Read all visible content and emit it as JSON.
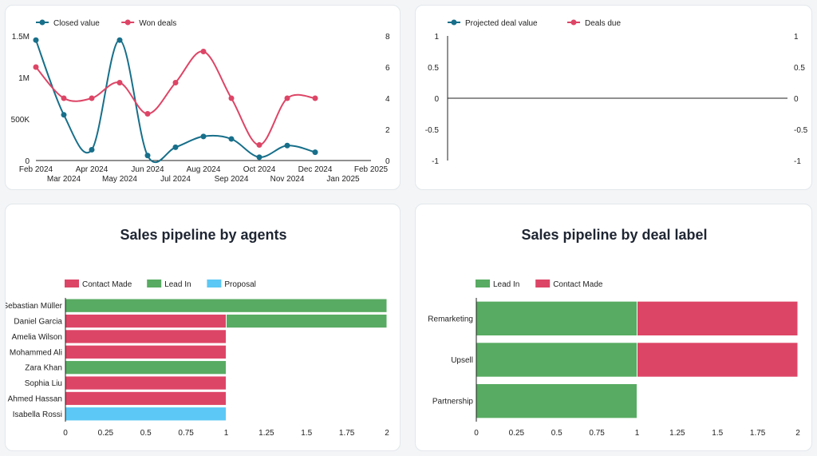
{
  "colors": {
    "teal": "#176f8a",
    "pink": "#dd4566",
    "green": "#58ab62",
    "red": "#dd4566",
    "sky": "#5cc8f5"
  },
  "chart_data": [
    {
      "type": "line",
      "legend": [
        "Closed value",
        "Won deals"
      ],
      "x_labels_top": [
        "Feb 2024",
        "Apr 2024",
        "Jun 2024",
        "Aug 2024",
        "Oct 2024",
        "Dec 2024",
        "Feb 2025"
      ],
      "x_labels_bottom": [
        "Mar 2024",
        "May 2024",
        "Jul 2024",
        "Sep 2024",
        "Nov 2024",
        "Jan 2025"
      ],
      "y_left_ticks": [
        "0",
        "500K",
        "1M",
        "1.5M"
      ],
      "y_right_ticks": [
        "0",
        "2",
        "4",
        "6",
        "8"
      ],
      "ylim_left": [
        0,
        1500000
      ],
      "ylim_right": [
        0,
        8
      ],
      "months": [
        0,
        1,
        2,
        3,
        4,
        5,
        6,
        7,
        8,
        9,
        10,
        11,
        12
      ],
      "series": [
        {
          "name": "Closed value",
          "axis": "left",
          "x": [
            0,
            1,
            2,
            3,
            4,
            5,
            6,
            7,
            8,
            9,
            10
          ],
          "values": [
            1450000,
            550000,
            130000,
            1450000,
            60000,
            160000,
            290000,
            260000,
            40000,
            180000,
            100000
          ]
        },
        {
          "name": "Won deals",
          "axis": "right",
          "x": [
            0,
            1,
            2,
            3,
            4,
            5,
            6,
            7,
            8,
            9,
            10
          ],
          "values": [
            6,
            4,
            4,
            5,
            3,
            5,
            7,
            4,
            1,
            4,
            4
          ]
        }
      ]
    },
    {
      "type": "line",
      "legend": [
        "Projected deal value",
        "Deals due"
      ],
      "y_left_ticks": [
        "-1",
        "-0.5",
        "0",
        "0.5",
        "1"
      ],
      "y_right_ticks": [
        "-1",
        "-0.5",
        "0",
        "0.5",
        "1"
      ],
      "ylim_left": [
        -1,
        1
      ],
      "ylim_right": [
        -1,
        1
      ],
      "series": []
    },
    {
      "type": "bar",
      "orientation": "horizontal",
      "stacked": true,
      "title": "Sales pipeline by agents",
      "legend": [
        "Contact Made",
        "Lead In",
        "Proposal"
      ],
      "categories": [
        "Sebastian Müller",
        "Daniel Garcia",
        "Amelia Wilson",
        "Mohammed Ali",
        "Zara Khan",
        "Sophia Liu",
        "Ahmed Hassan",
        "Isabella Rossi"
      ],
      "x_ticks": [
        "0",
        "0.25",
        "0.5",
        "0.75",
        "1",
        "1.25",
        "1.5",
        "1.75",
        "2"
      ],
      "xlim": [
        0,
        2
      ],
      "series": [
        {
          "name": "Contact Made",
          "values": [
            0,
            1,
            1,
            1,
            0,
            1,
            1,
            0
          ]
        },
        {
          "name": "Lead In",
          "values": [
            2,
            1,
            0,
            0,
            1,
            0,
            0,
            0
          ]
        },
        {
          "name": "Proposal",
          "values": [
            0,
            0,
            0,
            0,
            0,
            0,
            0,
            1
          ]
        }
      ]
    },
    {
      "type": "bar",
      "orientation": "horizontal",
      "stacked": true,
      "title": "Sales pipeline by deal label",
      "legend": [
        "Lead In",
        "Contact Made"
      ],
      "categories": [
        "Remarketing",
        "Upsell",
        "Partnership"
      ],
      "x_ticks": [
        "0",
        "0.25",
        "0.5",
        "0.75",
        "1",
        "1.25",
        "1.5",
        "1.75",
        "2"
      ],
      "xlim": [
        0,
        2
      ],
      "series": [
        {
          "name": "Lead In",
          "values": [
            1,
            1,
            1
          ]
        },
        {
          "name": "Contact Made",
          "values": [
            1,
            1,
            0
          ]
        }
      ]
    }
  ]
}
